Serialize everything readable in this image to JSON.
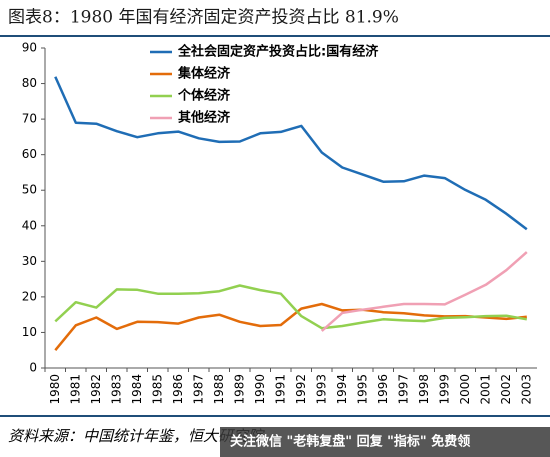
{
  "chart_data": {
    "type": "line",
    "title": "图表8：1980 年国有经济固定资产投资占比 81.9%",
    "source": "资料来源：中国统计年鉴，恒大研究院",
    "watermark": "关注微信 \"老韩复盘\" 回复 \"指标\" 免费领",
    "categories": [
      "1980",
      "1981",
      "1982",
      "1983",
      "1984",
      "1985",
      "1986",
      "1987",
      "1988",
      "1989",
      "1990",
      "1991",
      "1992",
      "1993",
      "1994",
      "1995",
      "1996",
      "1997",
      "1998",
      "1999",
      "2000",
      "2001",
      "2002",
      "2003"
    ],
    "series": [
      {
        "name": "全社会固定资产投资占比:国有经济",
        "color": "#1f6db5",
        "values": [
          81.9,
          69,
          68.7,
          66.6,
          64.9,
          66,
          66.5,
          64.6,
          63.6,
          63.7,
          66,
          66.4,
          68.1,
          60.6,
          56.4,
          54.4,
          52.4,
          52.5,
          54.1,
          53.4,
          50.1,
          47.3,
          43.4,
          39.0
        ]
      },
      {
        "name": "集体经济",
        "color": "#e36c0a",
        "values": [
          5.0,
          12.0,
          14.2,
          11.0,
          13.0,
          12.9,
          12.5,
          14.2,
          15.0,
          13.0,
          11.8,
          12.1,
          16.7,
          18.0,
          16.2,
          16.4,
          15.7,
          15.4,
          14.8,
          14.5,
          14.6,
          14.2,
          13.8,
          14.4
        ]
      },
      {
        "name": "个体经济",
        "color": "#92d050",
        "values": [
          13.1,
          18.5,
          17.0,
          22.1,
          22.0,
          20.9,
          20.9,
          21.0,
          21.6,
          23.2,
          21.9,
          20.9,
          14.6,
          11.2,
          11.8,
          12.8,
          13.7,
          13.4,
          13.2,
          14.1,
          14.3,
          14.6,
          14.7,
          13.7
        ]
      },
      {
        "name": "其他经济",
        "color": "#f0a0b4",
        "values": [
          null,
          null,
          null,
          null,
          null,
          null,
          null,
          null,
          null,
          null,
          null,
          null,
          null,
          10.4,
          15.5,
          16.4,
          17.2,
          18.0,
          18.0,
          17.9,
          20.6,
          23.4,
          27.5,
          32.6
        ]
      }
    ],
    "ylim": [
      0,
      90
    ],
    "yticks": [
      0,
      10,
      20,
      30,
      40,
      50,
      60,
      70,
      80,
      90
    ]
  }
}
